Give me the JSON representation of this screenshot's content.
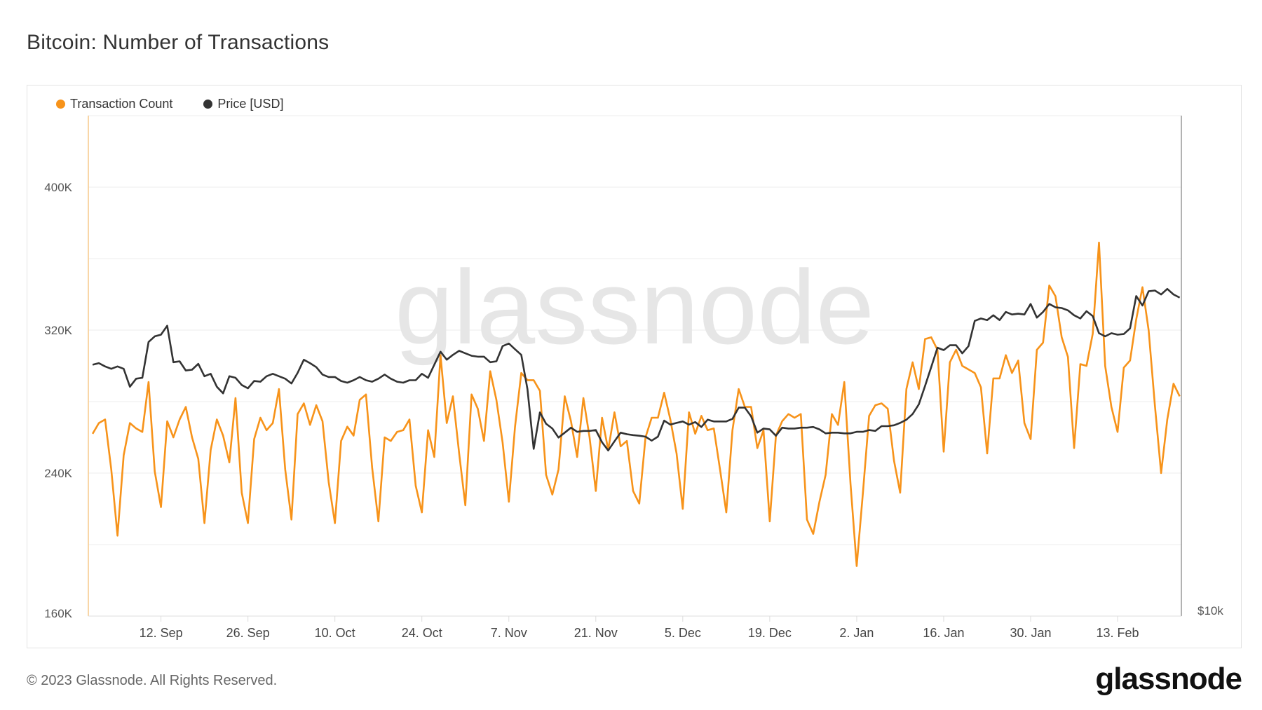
{
  "title": "Bitcoin: Number of Transactions",
  "footer": "© 2023 Glassnode. All Rights Reserved.",
  "logo": "glassnode",
  "watermark": "glassnode",
  "colors": {
    "transactions": "#f7931a",
    "price": "#333333",
    "grid": "#eeeeee"
  },
  "chart_data": {
    "type": "line",
    "title": "Bitcoin: Number of Transactions",
    "x_start": "2022-09-01",
    "x_end": "2023-02-23",
    "x_tick_labels": [
      "12. Sep",
      "26. Sep",
      "10. Oct",
      "24. Oct",
      "7. Nov",
      "21. Nov",
      "5. Dec",
      "19. Dec",
      "2. Jan",
      "16. Jan",
      "30. Jan",
      "13. Feb"
    ],
    "x_tick_dates": [
      "2022-09-12",
      "2022-09-26",
      "2022-10-10",
      "2022-10-24",
      "2022-11-07",
      "2022-11-21",
      "2022-12-05",
      "2022-12-19",
      "2023-01-02",
      "2023-01-16",
      "2023-01-30",
      "2023-02-13"
    ],
    "y_axis": {
      "scale": "linear",
      "range": [
        160000,
        440000
      ],
      "tick_labels": [
        "160K",
        "240K",
        "320K",
        "400K"
      ],
      "ticks": [
        160000,
        240000,
        320000,
        400000
      ],
      "grid": [
        160000,
        200000,
        240000,
        280000,
        320000,
        360000,
        400000,
        440000
      ]
    },
    "y2_axis": {
      "scale": "log",
      "range": [
        10000,
        39600
      ],
      "tick_labels": [
        "$10k"
      ],
      "ticks": [
        10000
      ]
    },
    "grid": true,
    "legend_position": "top-left",
    "series": [
      {
        "name": "Transaction Count",
        "axis": "left",
        "color": "#f7931a",
        "values": [
          262000,
          268000,
          270000,
          242000,
          205000,
          250000,
          268000,
          265000,
          263000,
          291000,
          241000,
          221000,
          269000,
          260000,
          270000,
          277000,
          260000,
          248000,
          212000,
          253000,
          270000,
          261000,
          246000,
          282000,
          229000,
          212000,
          259000,
          271000,
          264000,
          268000,
          287000,
          242000,
          214000,
          273000,
          279000,
          267000,
          278000,
          269000,
          235000,
          212000,
          258000,
          266000,
          261000,
          281000,
          284000,
          243000,
          213000,
          260000,
          258000,
          263000,
          264000,
          270000,
          233000,
          218000,
          264000,
          249000,
          306000,
          268000,
          283000,
          251000,
          222000,
          284000,
          276000,
          258000,
          297000,
          281000,
          257000,
          224000,
          266000,
          296000,
          292000,
          292000,
          286000,
          239000,
          228000,
          242000,
          283000,
          269000,
          249000,
          282000,
          260000,
          230000,
          271000,
          253000,
          274000,
          255000,
          258000,
          230000,
          223000,
          260000,
          271000,
          271000,
          285000,
          270000,
          251000,
          220000,
          274000,
          262000,
          272000,
          264000,
          265000,
          242000,
          218000,
          264000,
          287000,
          277000,
          277000,
          254000,
          264000,
          213000,
          261000,
          269000,
          273000,
          271000,
          273000,
          214000,
          206000,
          224000,
          239000,
          273000,
          267000,
          291000,
          234000,
          188000,
          229000,
          272000,
          278000,
          279000,
          276000,
          247000,
          229000,
          287000,
          302000,
          287000,
          315000,
          316000,
          309000,
          252000,
          302000,
          309000,
          300000,
          298000,
          296000,
          288000,
          251000,
          293000,
          293000,
          306000,
          296000,
          303000,
          268000,
          259000,
          309000,
          313000,
          345000,
          339000,
          316000,
          305000,
          254000,
          301000,
          300000,
          318000,
          369000,
          300000,
          277000,
          263000,
          299000,
          303000,
          326000,
          344000,
          320000,
          278000,
          240000,
          270000,
          290000,
          283000
        ]
      },
      {
        "name": "Price [USD]",
        "axis": "right",
        "color": "#333333",
        "values": [
          19960,
          20050,
          19870,
          19740,
          19870,
          19740,
          18790,
          19210,
          19260,
          21250,
          21580,
          21680,
          22220,
          20100,
          20150,
          19650,
          19690,
          20010,
          19340,
          19470,
          18790,
          18450,
          19340,
          19260,
          18880,
          18710,
          19090,
          19050,
          19340,
          19470,
          19340,
          19210,
          18960,
          19520,
          20240,
          20050,
          19830,
          19430,
          19300,
          19300,
          19090,
          19000,
          19130,
          19300,
          19130,
          19050,
          19210,
          19430,
          19210,
          19050,
          19000,
          19130,
          19130,
          19470,
          19260,
          19960,
          20690,
          20240,
          20510,
          20740,
          20600,
          20460,
          20410,
          20410,
          20100,
          20150,
          21010,
          21160,
          20830,
          20510,
          18670,
          15840,
          17510,
          16970,
          16750,
          16340,
          16560,
          16790,
          16600,
          16640,
          16640,
          16680,
          16130,
          15770,
          16170,
          16560,
          16490,
          16450,
          16420,
          16380,
          16200,
          16380,
          17120,
          16930,
          17010,
          17080,
          16930,
          17050,
          16820,
          17160,
          17080,
          17080,
          17080,
          17200,
          17740,
          17740,
          17320,
          16560,
          16750,
          16710,
          16420,
          16790,
          16750,
          16750,
          16790,
          16790,
          16820,
          16710,
          16530,
          16560,
          16560,
          16530,
          16530,
          16600,
          16600,
          16680,
          16640,
          16860,
          16860,
          16900,
          17010,
          17160,
          17430,
          17900,
          18830,
          19830,
          20920,
          20780,
          21060,
          21060,
          20600,
          21010,
          22520,
          22670,
          22570,
          22870,
          22570,
          23080,
          22920,
          22970,
          22920,
          23590,
          22720,
          23080,
          23590,
          23380,
          23330,
          23180,
          22870,
          22670,
          23130,
          22820,
          21770,
          21580,
          21770,
          21680,
          21720,
          22060,
          24110,
          23490,
          24430,
          24480,
          24220,
          24590,
          24220,
          24010
        ]
      }
    ]
  }
}
